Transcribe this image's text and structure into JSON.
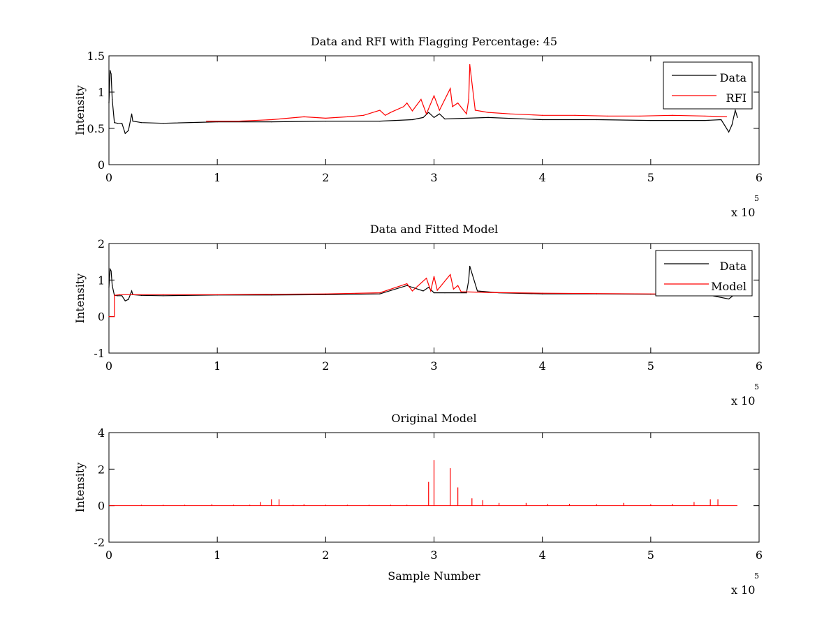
{
  "chart_data": [
    {
      "type": "line",
      "title": "Data and RFI with Flagging Percentage: 45",
      "xlabel": "",
      "ylabel": "Intensity",
      "xlim": [
        0,
        6
      ],
      "ylim": [
        0,
        1.5
      ],
      "xticks": [
        "0",
        "1",
        "2",
        "3",
        "4",
        "5",
        "6"
      ],
      "yticks": [
        "0",
        "0.5",
        "1",
        "1.5"
      ],
      "x_exponent": {
        "base": "x 10",
        "power": "5"
      },
      "legend": {
        "placement": "top-right",
        "entries": [
          "Data",
          "RFI"
        ]
      },
      "series": [
        {
          "name": "Data",
          "color": "#000000",
          "x": [
            0,
            0.01,
            0.02,
            0.03,
            0.05,
            0.08,
            0.12,
            0.15,
            0.18,
            0.21,
            0.22,
            0.3,
            0.5,
            1.0,
            1.5,
            2.0,
            2.5,
            2.8,
            2.9,
            2.95,
            3.0,
            3.05,
            3.1,
            3.5,
            4.0,
            4.5,
            5.0,
            5.5,
            5.65,
            5.72,
            5.75,
            5.78,
            5.8
          ],
          "values": [
            0.85,
            1.3,
            1.25,
            0.9,
            0.58,
            0.57,
            0.57,
            0.43,
            0.47,
            0.7,
            0.6,
            0.58,
            0.57,
            0.59,
            0.59,
            0.6,
            0.6,
            0.62,
            0.65,
            0.72,
            0.65,
            0.7,
            0.63,
            0.65,
            0.62,
            0.62,
            0.61,
            0.61,
            0.62,
            0.45,
            0.55,
            0.75,
            0.65
          ]
        },
        {
          "name": "RFI",
          "color": "#ff0000",
          "x": [
            0.9,
            1.2,
            1.5,
            1.8,
            2.0,
            2.2,
            2.35,
            2.5,
            2.55,
            2.6,
            2.72,
            2.75,
            2.8,
            2.88,
            2.93,
            3.0,
            3.05,
            3.15,
            3.17,
            3.22,
            3.3,
            3.32,
            3.33,
            3.38,
            3.5,
            3.7,
            4.0,
            4.3,
            4.6,
            4.9,
            5.2,
            5.5,
            5.7
          ],
          "values": [
            0.6,
            0.6,
            0.62,
            0.66,
            0.64,
            0.66,
            0.68,
            0.75,
            0.68,
            0.72,
            0.8,
            0.85,
            0.74,
            0.9,
            0.7,
            0.95,
            0.75,
            1.05,
            0.8,
            0.85,
            0.7,
            0.9,
            1.38,
            0.75,
            0.72,
            0.7,
            0.68,
            0.68,
            0.67,
            0.67,
            0.68,
            0.67,
            0.66
          ]
        }
      ]
    },
    {
      "type": "line",
      "title": "Data and Fitted Model",
      "xlabel": "",
      "ylabel": "Intensity",
      "xlim": [
        0,
        6
      ],
      "ylim": [
        -1,
        2
      ],
      "xticks": [
        "0",
        "1",
        "2",
        "3",
        "4",
        "5",
        "6"
      ],
      "yticks": [
        "-1",
        "0",
        "1",
        "2"
      ],
      "x_exponent": {
        "base": "x 10",
        "power": "5"
      },
      "legend": {
        "placement": "top-right",
        "entries": [
          "Data",
          "Model"
        ]
      },
      "series": [
        {
          "name": "Data",
          "color": "#000000",
          "x": [
            0,
            0.01,
            0.02,
            0.03,
            0.05,
            0.08,
            0.12,
            0.15,
            0.18,
            0.21,
            0.22,
            0.3,
            0.5,
            1.0,
            1.5,
            2.0,
            2.5,
            2.75,
            2.9,
            2.95,
            3.0,
            3.1,
            3.3,
            3.32,
            3.33,
            3.4,
            3.6,
            4.0,
            4.5,
            5.0,
            5.5,
            5.72,
            5.75,
            5.8
          ],
          "values": [
            0.8,
            1.3,
            1.25,
            0.85,
            0.58,
            0.57,
            0.57,
            0.43,
            0.47,
            0.7,
            0.6,
            0.58,
            0.57,
            0.59,
            0.59,
            0.6,
            0.62,
            0.85,
            0.7,
            0.8,
            0.65,
            0.65,
            0.65,
            1.0,
            1.38,
            0.7,
            0.65,
            0.62,
            0.62,
            0.61,
            0.61,
            0.48,
            0.55,
            0.7
          ]
        },
        {
          "name": "Model",
          "color": "#ff0000",
          "x": [
            0,
            0.05,
            0.05,
            0.1,
            0.5,
            1.0,
            1.5,
            2.0,
            2.5,
            2.75,
            2.8,
            2.93,
            2.97,
            3.0,
            3.03,
            3.15,
            3.18,
            3.22,
            3.25,
            3.5,
            4.0,
            4.5,
            5.0,
            5.5,
            5.7
          ],
          "values": [
            0,
            0,
            0.58,
            0.6,
            0.6,
            0.6,
            0.61,
            0.62,
            0.65,
            0.9,
            0.7,
            1.05,
            0.7,
            1.1,
            0.72,
            1.15,
            0.75,
            0.85,
            0.68,
            0.66,
            0.64,
            0.63,
            0.62,
            0.61,
            0.6
          ]
        }
      ]
    },
    {
      "type": "line",
      "title": "Original Model",
      "xlabel": "Sample Number",
      "ylabel": "Intensity",
      "xlim": [
        0,
        6
      ],
      "ylim": [
        -2,
        4
      ],
      "xticks": [
        "0",
        "1",
        "2",
        "3",
        "4",
        "5",
        "6"
      ],
      "yticks": [
        "-2",
        "0",
        "2",
        "4"
      ],
      "x_exponent": {
        "base": "x 10",
        "power": "5"
      },
      "legend": null,
      "series": [
        {
          "name": "Original Model",
          "color": "#ff0000",
          "baseline": 0,
          "x_end": 5.8,
          "spikes_x": [
            0.3,
            0.5,
            0.7,
            0.95,
            1.15,
            1.3,
            1.4,
            1.5,
            1.57,
            1.7,
            1.8,
            2.0,
            2.2,
            2.4,
            2.6,
            2.75,
            2.95,
            3.0,
            3.15,
            3.22,
            3.35,
            3.45,
            3.6,
            3.85,
            4.05,
            4.25,
            4.5,
            4.75,
            5.0,
            5.2,
            5.4,
            5.55,
            5.62
          ],
          "spikes_y": [
            0.05,
            0.05,
            0.05,
            0.08,
            0.05,
            0.05,
            0.2,
            0.35,
            0.35,
            0.05,
            0.08,
            0.05,
            0.05,
            0.05,
            0.05,
            0.05,
            1.3,
            2.5,
            2.05,
            1.0,
            0.4,
            0.3,
            0.15,
            0.15,
            0.1,
            0.1,
            0.08,
            0.15,
            0.08,
            0.1,
            0.2,
            0.35,
            0.35
          ]
        }
      ]
    }
  ]
}
